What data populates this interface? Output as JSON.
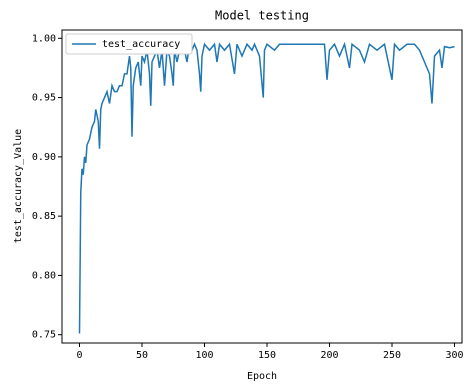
{
  "chart_data": {
    "type": "line",
    "title": "Model testing",
    "xlabel": "Epoch",
    "ylabel": "test_accuracy_Value",
    "legend": "upper left",
    "series": [
      {
        "name": "test_accuracy",
        "color": "#1f77b4",
        "x": [
          0,
          1,
          2,
          3,
          4,
          5,
          6,
          8,
          10,
          12,
          13,
          15,
          16,
          17,
          18,
          20,
          22,
          24,
          26,
          28,
          30,
          32,
          34,
          36,
          38,
          40,
          41,
          42,
          43,
          45,
          47,
          49,
          50,
          52,
          54,
          56,
          57,
          58,
          60,
          62,
          64,
          66,
          68,
          70,
          72,
          74,
          75,
          76,
          78,
          80,
          82,
          84,
          86,
          88,
          90,
          92,
          94,
          96,
          97,
          98,
          100,
          104,
          108,
          110,
          112,
          116,
          120,
          124,
          126,
          130,
          134,
          138,
          140,
          144,
          147,
          148,
          150,
          156,
          160,
          170,
          180,
          190,
          196,
          198,
          200,
          204,
          208,
          212,
          216,
          218,
          224,
          228,
          232,
          238,
          244,
          248,
          250,
          252,
          256,
          262,
          268,
          272,
          276,
          280,
          282,
          284,
          288,
          290,
          292,
          296,
          300
        ],
        "values": [
          0.751,
          0.87,
          0.89,
          0.885,
          0.9,
          0.895,
          0.91,
          0.915,
          0.925,
          0.93,
          0.94,
          0.93,
          0.907,
          0.94,
          0.945,
          0.95,
          0.955,
          0.945,
          0.96,
          0.955,
          0.955,
          0.96,
          0.96,
          0.97,
          0.97,
          0.985,
          0.975,
          0.917,
          0.96,
          0.975,
          0.98,
          0.96,
          0.985,
          0.98,
          0.99,
          0.97,
          0.943,
          0.98,
          0.985,
          0.99,
          0.975,
          0.99,
          0.96,
          0.99,
          0.985,
          0.97,
          0.96,
          0.99,
          0.98,
          0.99,
          0.995,
          0.99,
          0.98,
          0.995,
          0.99,
          0.995,
          0.99,
          0.97,
          0.955,
          0.985,
          0.995,
          0.99,
          0.995,
          0.98,
          0.995,
          0.99,
          0.995,
          0.97,
          0.995,
          0.985,
          0.995,
          0.99,
          0.995,
          0.985,
          0.95,
          0.99,
          0.995,
          0.99,
          0.995,
          0.995,
          0.995,
          0.995,
          0.995,
          0.965,
          0.99,
          0.995,
          0.985,
          0.995,
          0.975,
          0.995,
          0.99,
          0.98,
          0.995,
          0.99,
          0.995,
          0.975,
          0.965,
          0.995,
          0.99,
          0.995,
          0.995,
          0.99,
          0.98,
          0.97,
          0.945,
          0.985,
          0.99,
          0.975,
          0.993,
          0.992,
          0.993
        ]
      }
    ],
    "xlim": [
      -14,
      306
    ],
    "xticks": [
      0,
      50,
      100,
      150,
      200,
      250,
      300
    ],
    "ylim": [
      0.743,
      1.007
    ],
    "yticks": [
      {
        "value": 0.75,
        "label": "0.75"
      },
      {
        "value": 0.8,
        "label": "0.80"
      },
      {
        "value": 0.85,
        "label": "0.85"
      },
      {
        "value": 0.9,
        "label": "0.90"
      },
      {
        "value": 0.95,
        "label": "0.95"
      },
      {
        "value": 1.0,
        "label": "1.00"
      }
    ]
  }
}
